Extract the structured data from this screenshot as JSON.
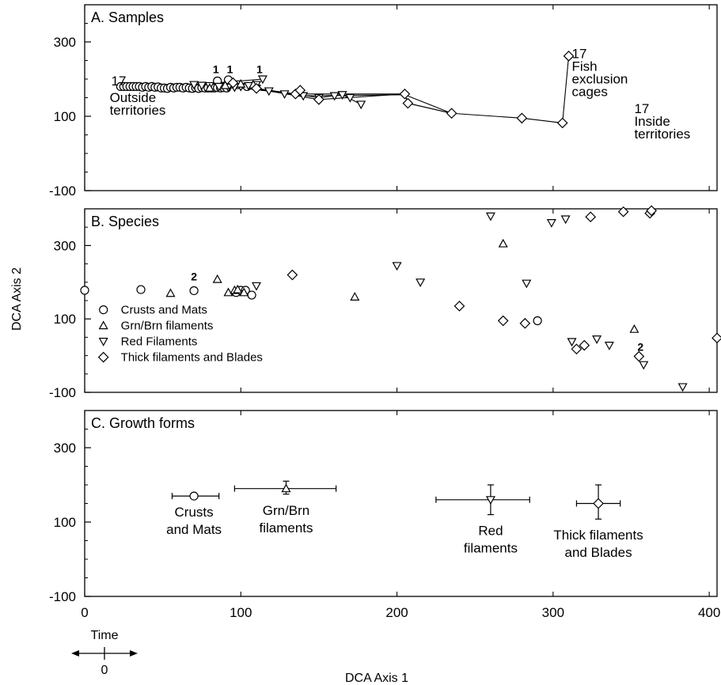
{
  "colors": {
    "ink": "#000000",
    "paper": "#ffffff"
  },
  "chart_data": {
    "type": "scatter",
    "xlabel": "DCA Axis 1",
    "ylabel": "DCA Axis 2",
    "xlim": [
      0,
      405
    ],
    "x_ticks": [
      0,
      100,
      200,
      300,
      400
    ],
    "x_tick_labels": [
      "0",
      "100",
      "200",
      "300",
      "400"
    ],
    "time_label": "Time",
    "time_zero_label": "0",
    "panels": [
      {
        "id": "A",
        "title": "A.  Samples",
        "ylim": [
          -100,
          400
        ],
        "y_ticks": [
          -100,
          100,
          300
        ],
        "y_tick_labels": [
          "-100",
          "100",
          "300"
        ],
        "annotations": [
          {
            "text": "17",
            "x": 17,
            "y": 183
          },
          {
            "text": "Outside",
            "x": 16,
            "y": 138
          },
          {
            "text": "territories",
            "x": 16,
            "y": 104
          },
          {
            "text": "1",
            "x": 84,
            "y": 216
          },
          {
            "text": "1",
            "x": 93,
            "y": 216
          },
          {
            "text": "1",
            "x": 112,
            "y": 216
          },
          {
            "text": "17",
            "x": 352,
            "y": 108
          },
          {
            "text": "Inside",
            "x": 352,
            "y": 74
          },
          {
            "text": "territories",
            "x": 352,
            "y": 40
          },
          {
            "text": "17",
            "x": 312,
            "y": 256
          },
          {
            "text": "Fish",
            "x": 312,
            "y": 222
          },
          {
            "text": "exclusion",
            "x": 312,
            "y": 188
          },
          {
            "text": "cages",
            "x": 312,
            "y": 154
          }
        ],
        "series": [
          {
            "marker": "circle",
            "points": [
              [
                23,
                180
              ],
              [
                25,
                180
              ],
              [
                27,
                180
              ],
              [
                29,
                180
              ],
              [
                31,
                180
              ],
              [
                33,
                180
              ],
              [
                35,
                180
              ],
              [
                37,
                178
              ],
              [
                39,
                180
              ],
              [
                41,
                178
              ],
              [
                43,
                180
              ],
              [
                45,
                178
              ],
              [
                47,
                179
              ],
              [
                49,
                176
              ],
              [
                51,
                176
              ],
              [
                53,
                175
              ],
              [
                55,
                178
              ],
              [
                57,
                176
              ],
              [
                59,
                178
              ],
              [
                61,
                178
              ],
              [
                63,
                176
              ],
              [
                65,
                178
              ],
              [
                67,
                176
              ],
              [
                69,
                175
              ],
              [
                71,
                177
              ],
              [
                73,
                175
              ],
              [
                75,
                177
              ],
              [
                77,
                176
              ],
              [
                79,
                176
              ],
              [
                81,
                176
              ],
              [
                83,
                176
              ],
              [
                85,
                177
              ],
              [
                87,
                176
              ],
              [
                89,
                177
              ],
              [
                91,
                176
              ],
              [
                85,
                195
              ],
              [
                92,
                198
              ],
              [
                98,
                185
              ],
              [
                104,
                180
              ]
            ]
          },
          {
            "marker": "triangle-down",
            "points": [
              [
                70,
                185
              ],
              [
                75,
                183
              ],
              [
                80,
                182
              ],
              [
                86,
                180
              ],
              [
                92,
                178
              ],
              [
                96,
                178
              ],
              [
                100,
                180
              ],
              [
                105,
                182
              ],
              [
                110,
                185
              ],
              [
                114,
                200
              ],
              [
                110,
                175
              ],
              [
                118,
                168
              ],
              [
                128,
                160
              ],
              [
                140,
                155
              ],
              [
                150,
                150
              ],
              [
                160,
                155
              ],
              [
                165,
                158
              ],
              [
                177,
                132
              ],
              [
                170,
                150
              ]
            ]
          },
          {
            "marker": "triangle-up",
            "points": [
              [
                80,
                176
              ],
              [
                90,
                183
              ],
              [
                100,
                187
              ],
              [
                108,
                185
              ]
            ]
          },
          {
            "marker": "diamond",
            "points": [
              [
                95,
                190
              ],
              [
                110,
                175
              ],
              [
                135,
                160
              ],
              [
                138,
                170
              ],
              [
                150,
                145
              ],
              [
                205,
                160
              ],
              [
                207,
                135
              ],
              [
                235,
                108
              ],
              [
                280,
                95
              ],
              [
                306,
                82
              ],
              [
                310,
                262
              ]
            ]
          }
        ],
        "trajectories": [
          [
            [
              23,
              180
            ],
            [
              60,
              178
            ],
            [
              100,
              176
            ],
            [
              135,
              160
            ],
            [
              150,
              150
            ],
            [
              165,
              158
            ],
            [
              177,
              132
            ]
          ],
          [
            [
              60,
              178
            ],
            [
              100,
              188
            ],
            [
              110,
              175
            ],
            [
              135,
              160
            ],
            [
              205,
              160
            ],
            [
              207,
              135
            ],
            [
              235,
              108
            ]
          ],
          [
            [
              70,
              185
            ],
            [
              114,
              200
            ]
          ],
          [
            [
              84,
              195
            ],
            [
              100,
              180
            ],
            [
              140,
              155
            ],
            [
              205,
              158
            ],
            [
              235,
              108
            ],
            [
              280,
              95
            ],
            [
              306,
              82
            ],
            [
              310,
              262
            ]
          ],
          [
            [
              88,
              182
            ],
            [
              118,
              168
            ],
            [
              150,
              145
            ],
            [
              205,
              160
            ],
            [
              207,
              135
            ],
            [
              235,
              108
            ]
          ]
        ]
      },
      {
        "id": "B",
        "title": "B.  Species",
        "ylim": [
          -100,
          400
        ],
        "y_ticks": [
          -100,
          100,
          300
        ],
        "y_tick_labels": [
          "-100",
          "100",
          "300"
        ],
        "legend": [
          {
            "marker": "circle",
            "label": "Crusts and Mats"
          },
          {
            "marker": "triangle-up",
            "label": "Grn/Brn filaments"
          },
          {
            "marker": "triangle-down",
            "label": "Red Filaments"
          },
          {
            "marker": "diamond",
            "label": "Thick filaments and Blades"
          }
        ],
        "annotations": [
          {
            "text": "2",
            "x": 70,
            "y": 205
          },
          {
            "text": "2",
            "x": 356,
            "y": 13
          }
        ],
        "series": [
          {
            "name": "Crusts and Mats",
            "marker": "circle",
            "points": [
              [
                0,
                178
              ],
              [
                36,
                180
              ],
              [
                70,
                177
              ],
              [
                97,
                172
              ],
              [
                100,
                178
              ],
              [
                103,
                178
              ],
              [
                107,
                165
              ],
              [
                290,
                95
              ]
            ]
          },
          {
            "name": "Grn/Brn filaments",
            "marker": "triangle-up",
            "points": [
              [
                55,
                170
              ],
              [
                85,
                208
              ],
              [
                92,
                172
              ],
              [
                96,
                178
              ],
              [
                98,
                180
              ],
              [
                102,
                172
              ],
              [
                173,
                160
              ],
              [
                268,
                305
              ],
              [
                352,
                72
              ]
            ]
          },
          {
            "name": "Red Filaments",
            "marker": "triangle-down",
            "points": [
              [
                110,
                190
              ],
              [
                200,
                245
              ],
              [
                215,
                200
              ],
              [
                260,
                380
              ],
              [
                283,
                197
              ],
              [
                299,
                362
              ],
              [
                308,
                372
              ],
              [
                312,
                38
              ],
              [
                328,
                45
              ],
              [
                336,
                28
              ],
              [
                358,
                -25
              ],
              [
                383,
                -85
              ]
            ]
          },
          {
            "name": "Thick filaments and Blades",
            "marker": "diamond",
            "points": [
              [
                133,
                220
              ],
              [
                240,
                135
              ],
              [
                268,
                95
              ],
              [
                282,
                88
              ],
              [
                315,
                18
              ],
              [
                320,
                28
              ],
              [
                324,
                378
              ],
              [
                345,
                392
              ],
              [
                355,
                -2
              ],
              [
                362,
                388
              ],
              [
                363,
                395
              ],
              [
                405,
                48
              ]
            ]
          }
        ]
      },
      {
        "id": "C",
        "title": "C.  Growth forms",
        "ylim": [
          -100,
          400
        ],
        "y_ticks": [
          -100,
          100,
          300
        ],
        "y_tick_labels": [
          "-100",
          "100",
          "300"
        ],
        "series": [
          {
            "name": "Crusts and Mats",
            "marker": "circle",
            "x": 70,
            "y": 170,
            "x_err": [
              56,
              86
            ],
            "y_err": [
              170,
              170
            ],
            "label_lines": [
              "Crusts",
              "and Mats"
            ]
          },
          {
            "name": "Grn/Brn filaments",
            "marker": "triangle-up",
            "x": 129,
            "y": 190,
            "x_err": [
              96,
              161
            ],
            "y_err": [
              175,
              210
            ],
            "label_lines": [
              "Grn/Brn",
              "filaments"
            ]
          },
          {
            "name": "Red filaments",
            "marker": "triangle-down",
            "x": 260,
            "y": 160,
            "x_err": [
              225,
              285
            ],
            "y_err": [
              120,
              200
            ],
            "label_lines": [
              "Red",
              "filaments"
            ]
          },
          {
            "name": "Thick filaments and Blades",
            "marker": "diamond",
            "x": 329,
            "y": 150,
            "x_err": [
              315,
              343
            ],
            "y_err": [
              108,
              200
            ],
            "label_lines": [
              "Thick filaments",
              "and Blades"
            ]
          }
        ]
      }
    ]
  }
}
